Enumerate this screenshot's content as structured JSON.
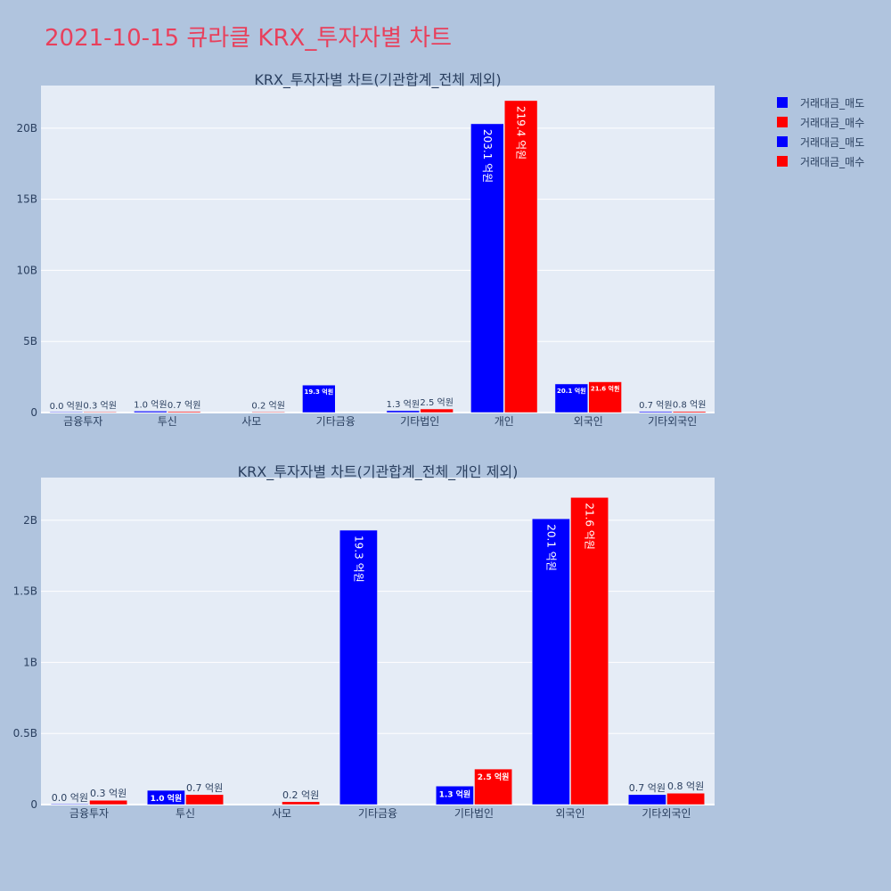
{
  "page": {
    "title": "2021-10-15 큐라클 KRX_투자자별 차트"
  },
  "legend": {
    "items": [
      {
        "label": "거래대금_매도",
        "color": "#0000ff"
      },
      {
        "label": "거래대금_매수",
        "color": "#ff0000"
      },
      {
        "label": "거래대금_매도",
        "color": "#0000ff"
      },
      {
        "label": "거래대금_매수",
        "color": "#ff0000"
      }
    ]
  },
  "chart_data": [
    {
      "type": "bar",
      "title": "KRX_투자자별 차트(기관합계_전체 제외)",
      "categories": [
        "금융투자",
        "투신",
        "사모",
        "기타금융",
        "기타법인",
        "개인",
        "외국인",
        "기타외국인"
      ],
      "ylim": [
        0,
        23
      ],
      "yticks": [
        0,
        5,
        10,
        15,
        20
      ],
      "ytick_labels": [
        "0",
        "5B",
        "10B",
        "15B",
        "20B"
      ],
      "grid": true,
      "series": [
        {
          "name": "거래대금_매도",
          "color": "#0000ff",
          "values": [
            0.0,
            0.1,
            null,
            1.93,
            0.13,
            20.31,
            2.01,
            0.07
          ],
          "labels": [
            "0.0 억원",
            "1.0 억원",
            "",
            "19.3 억원",
            "1.3 억원",
            "203.1 억원",
            "20.1 억원",
            "0.7 억원"
          ]
        },
        {
          "name": "거래대금_매수",
          "color": "#ff0000",
          "values": [
            0.03,
            0.07,
            0.02,
            null,
            0.25,
            21.94,
            2.16,
            0.08
          ],
          "labels": [
            "0.3 억원",
            "0.7 억원",
            "0.2 억원",
            "",
            "2.5 억원",
            "219.4 억원",
            "21.6 억원",
            "0.8 억원"
          ]
        }
      ]
    },
    {
      "type": "bar",
      "title": "KRX_투자자별 차트(기관합계_전체_개인 제외)",
      "categories": [
        "금융투자",
        "투신",
        "사모",
        "기타금융",
        "기타법인",
        "외국인",
        "기타외국인"
      ],
      "ylim": [
        0,
        2.3
      ],
      "yticks": [
        0,
        0.5,
        1,
        1.5,
        2
      ],
      "ytick_labels": [
        "0",
        "0.5B",
        "1B",
        "1.5B",
        "2B"
      ],
      "grid": true,
      "series": [
        {
          "name": "거래대금_매도",
          "color": "#0000ff",
          "values": [
            0.0,
            0.1,
            null,
            1.93,
            0.13,
            2.01,
            0.07
          ],
          "labels": [
            "0.0 억원",
            "1.0 억원",
            "",
            "19.3 억원",
            "1.3 억원",
            "20.1 억원",
            "0.7 억원"
          ]
        },
        {
          "name": "거래대금_매수",
          "color": "#ff0000",
          "values": [
            0.03,
            0.07,
            0.02,
            null,
            0.25,
            2.16,
            0.08
          ],
          "labels": [
            "0.3 억원",
            "0.7 억원",
            "0.2 억원",
            "",
            "2.5 억원",
            "21.6 억원",
            "0.8 억원"
          ]
        }
      ]
    }
  ]
}
